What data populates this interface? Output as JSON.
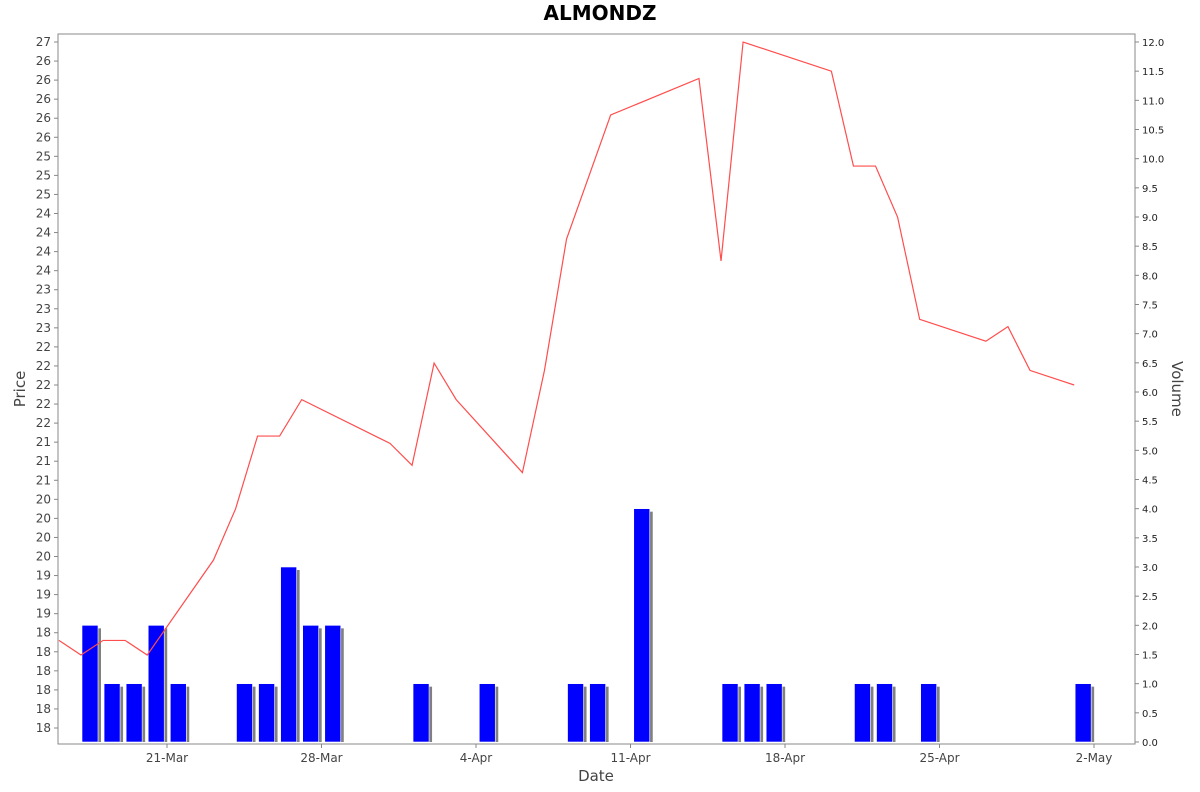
{
  "chart_data": {
    "type": "bar+line",
    "title": "ALMONDZ",
    "xlabel": "Date",
    "ylabel_left": "Price",
    "ylabel_right": "Volume",
    "x_tick_labels": [
      "21-Mar",
      "28-Mar",
      "4-Apr",
      "11-Apr",
      "18-Apr",
      "25-Apr",
      "2-May"
    ],
    "left_tick_labels": [
      "18",
      "18",
      "18",
      "18",
      "18",
      "18",
      "19",
      "19",
      "19",
      "20",
      "20",
      "20",
      "20",
      "21",
      "21",
      "21",
      "22",
      "22",
      "22",
      "22",
      "22",
      "23",
      "23",
      "23",
      "24",
      "24",
      "24",
      "24",
      "25",
      "25",
      "25",
      "26",
      "26",
      "26",
      "26",
      "26",
      "27"
    ],
    "right_ticks": [
      "0.0",
      "0.5",
      "1.0",
      "1.5",
      "2.0",
      "2.5",
      "3.0",
      "3.5",
      "4.0",
      "4.5",
      "5.0",
      "5.5",
      "6.0",
      "6.5",
      "7.0",
      "7.5",
      "8.0",
      "8.5",
      "9.0",
      "9.5",
      "10.0",
      "10.5",
      "11.0",
      "11.5",
      "12.0"
    ],
    "right_ylim": [
      0,
      12
    ],
    "x_range": [
      -5,
      44
    ],
    "grid": false,
    "series": [
      {
        "type": "line",
        "color": "#ff4d4d",
        "points": [
          {
            "x": -1,
            "y": 18.8
          },
          {
            "x": 0,
            "y": 18.6
          },
          {
            "x": 1,
            "y": 18.8
          },
          {
            "x": 2,
            "y": 18.8
          },
          {
            "x": 3,
            "y": 18.6
          },
          {
            "x": 6,
            "y": 19.9
          },
          {
            "x": 7,
            "y": 20.6
          },
          {
            "x": 8,
            "y": 21.6
          },
          {
            "x": 9,
            "y": 21.6
          },
          {
            "x": 10,
            "y": 22.1
          },
          {
            "x": 14,
            "y": 21.5
          },
          {
            "x": 15,
            "y": 21.2
          },
          {
            "x": 16,
            "y": 22.6
          },
          {
            "x": 17,
            "y": 22.1
          },
          {
            "x": 20,
            "y": 21.1
          },
          {
            "x": 21,
            "y": 22.5
          },
          {
            "x": 22,
            "y": 24.3
          },
          {
            "x": 24,
            "y": 26.0
          },
          {
            "x": 28,
            "y": 26.5
          },
          {
            "x": 29,
            "y": 24.0
          },
          {
            "x": 30,
            "y": 27.0
          },
          {
            "x": 34,
            "y": 26.6
          },
          {
            "x": 35,
            "y": 25.3
          },
          {
            "x": 36,
            "y": 25.3
          },
          {
            "x": 37,
            "y": 24.6
          },
          {
            "x": 38,
            "y": 23.2
          },
          {
            "x": 41,
            "y": 22.9
          },
          {
            "x": 42,
            "y": 23.1
          },
          {
            "x": 43,
            "y": 22.5
          },
          {
            "x": 45,
            "y": 22.3
          }
        ]
      },
      {
        "type": "bar",
        "name": "Volume",
        "color": "#0000ff",
        "points": [
          {
            "x": 0,
            "y": 2
          },
          {
            "x": 1,
            "y": 1
          },
          {
            "x": 2,
            "y": 1
          },
          {
            "x": 3,
            "y": 2
          },
          {
            "x": 4,
            "y": 1
          },
          {
            "x": 7,
            "y": 1
          },
          {
            "x": 8,
            "y": 1
          },
          {
            "x": 9,
            "y": 3
          },
          {
            "x": 10,
            "y": 2
          },
          {
            "x": 11,
            "y": 2
          },
          {
            "x": 15,
            "y": 1
          },
          {
            "x": 18,
            "y": 1
          },
          {
            "x": 22,
            "y": 1
          },
          {
            "x": 23,
            "y": 1
          },
          {
            "x": 25,
            "y": 4
          },
          {
            "x": 29,
            "y": 1
          },
          {
            "x": 30,
            "y": 1
          },
          {
            "x": 31,
            "y": 1
          },
          {
            "x": 35,
            "y": 1
          },
          {
            "x": 36,
            "y": 1
          },
          {
            "x": 38,
            "y": 1
          },
          {
            "x": 45,
            "y": 1
          }
        ]
      }
    ]
  }
}
